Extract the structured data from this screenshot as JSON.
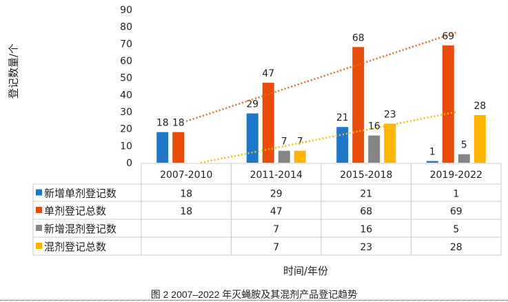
{
  "chart_data": {
    "type": "bar",
    "title": "",
    "xlabel": "时间/年份",
    "ylabel": "登记数量/个",
    "ylim": [
      0,
      90
    ],
    "yticks": [
      0,
      10,
      20,
      30,
      40,
      50,
      60,
      70,
      80,
      90
    ],
    "categories": [
      "2007-2010",
      "2011-2014",
      "2015-2018",
      "2019-2022"
    ],
    "series": [
      {
        "name": "新增单剂登记数",
        "color": "#1f77c9",
        "values": [
          18,
          29,
          21,
          1
        ]
      },
      {
        "name": "单剂登记总数",
        "color": "#e84c0a",
        "values": [
          18,
          47,
          68,
          69
        ]
      },
      {
        "name": "新增混剂登记数",
        "color": "#858585",
        "values": [
          null,
          7,
          16,
          5
        ]
      },
      {
        "name": "混剂登记总数",
        "color": "#ffb400",
        "values": [
          null,
          7,
          23,
          28
        ]
      }
    ],
    "trendlines": [
      {
        "series": "单剂登记总数",
        "type": "linear",
        "style": "dotted",
        "color": "#ee6a1c"
      },
      {
        "series": "混剂登记总数",
        "type": "linear",
        "style": "dotted",
        "color": "#f5c000"
      }
    ],
    "data_table": true,
    "grid": false,
    "legend": "data-table"
  },
  "caption": "图 2   2007–2022 年灭蝇胺及其混剂产品登记趋势"
}
